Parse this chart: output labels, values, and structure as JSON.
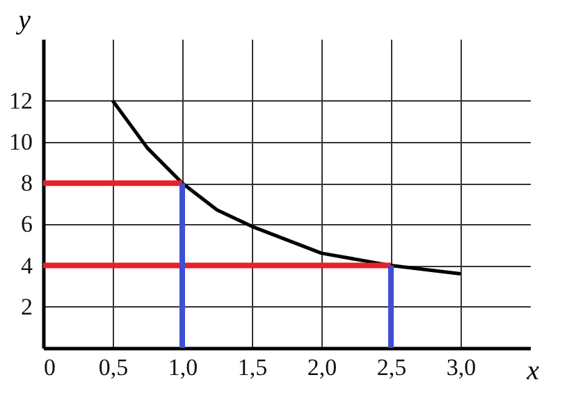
{
  "chart_data": {
    "type": "line",
    "xlabel": "x",
    "ylabel": "y",
    "xlim": [
      0,
      3.5
    ],
    "ylim": [
      0,
      15
    ],
    "xticks": [
      {
        "value": 0,
        "label": "0"
      },
      {
        "value": 0.5,
        "label": "0,5"
      },
      {
        "value": 1,
        "label": "1,0"
      },
      {
        "value": 1.5,
        "label": "1,5"
      },
      {
        "value": 2,
        "label": "2,0"
      },
      {
        "value": 2.5,
        "label": "2,5"
      },
      {
        "value": 3,
        "label": "3,0"
      }
    ],
    "yticks": [
      2,
      4,
      6,
      8,
      10,
      12
    ],
    "grid": true,
    "marker": "none",
    "line_style": "solid",
    "series": [
      {
        "color": "#000000",
        "x": [
          0.5,
          0.75,
          1,
          1.25,
          1.5,
          2,
          2.5,
          3
        ],
        "values": [
          12,
          9.7,
          8,
          6.7,
          5.9,
          4.6,
          4,
          3.6
        ]
      },
      {
        "color": "#e8202a",
        "x": [
          0,
          1
        ],
        "values": [
          8,
          8
        ]
      },
      {
        "color": "#e8202a",
        "x": [
          0,
          2.5
        ],
        "values": [
          4,
          4
        ]
      },
      {
        "color": "#3f4fd0",
        "x": [
          1,
          1
        ],
        "values": [
          0,
          8
        ]
      },
      {
        "color": "#3f4fd0",
        "x": [
          2.5,
          2.5
        ],
        "values": [
          0,
          4
        ]
      }
    ]
  }
}
